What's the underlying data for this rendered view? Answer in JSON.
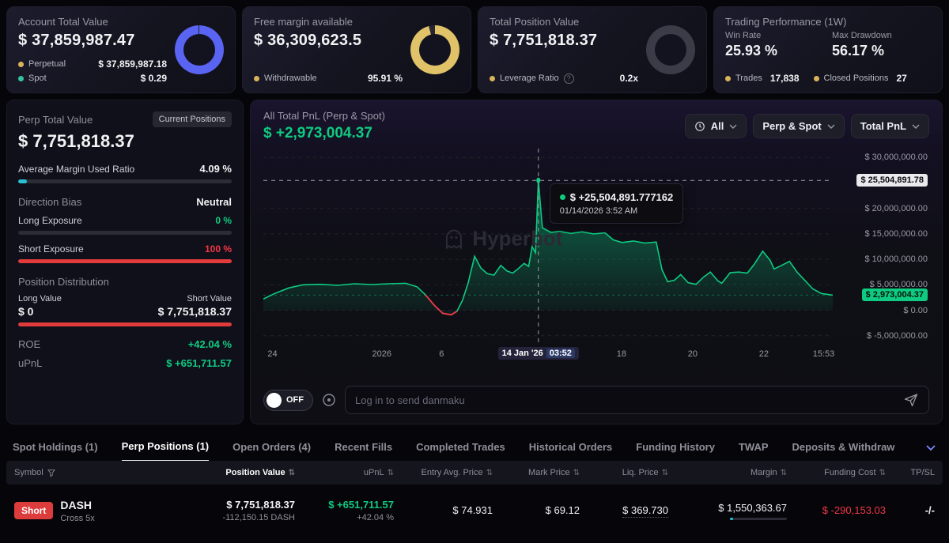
{
  "icons": {
    "sort": "⇅",
    "question": "?"
  },
  "cards": {
    "account": {
      "title": "Account Total Value",
      "value": "$ 37,859,987.47",
      "legend": [
        {
          "label": "Perpetual",
          "value": "$ 37,859,987.18",
          "color": "#d9b45b"
        },
        {
          "label": "Spot",
          "value": "$ 0.29",
          "color": "#35c2a0"
        }
      ],
      "donut": {
        "pct": 99.4,
        "color": "#5964f3",
        "track": "#262633"
      }
    },
    "free_margin": {
      "title": "Free margin available",
      "value": "$ 36,309,623.5",
      "legend_label": "Withdrawable",
      "legend_value": "95.91 %",
      "legend_color": "#d9b45b",
      "donut": {
        "pct": 95.91,
        "color": "#e0c368",
        "track": "#262633"
      }
    },
    "position": {
      "title": "Total Position Value",
      "value": "$ 7,751,818.37",
      "legend_label": "Leverage Ratio",
      "legend_value": "0.2x",
      "legend_color": "#d9b45b",
      "donut": {
        "pct": 100,
        "color": "#3c3c49",
        "track": "#3c3c49"
      }
    },
    "performance": {
      "title": "Trading Performance (1W)",
      "win_rate_label": "Win Rate",
      "win_rate": "25.93 %",
      "max_drawdown_label": "Max Drawdown",
      "max_drawdown": "56.17 %",
      "trades_label": "Trades",
      "trades": "17,838",
      "closed_label": "Closed Positions",
      "closed": "27",
      "dot_color": "#d9b45b"
    }
  },
  "perp_panel": {
    "title": "Perp Total Value",
    "button_label": "Current Positions",
    "value": "$ 7,751,818.37",
    "margin_ratio_label": "Average Margin Used Ratio",
    "margin_ratio_value": "4.09 %",
    "margin_bar": {
      "pct": 4.09,
      "color": "#27c2d4"
    },
    "direction_bias_label": "Direction Bias",
    "direction_bias_value": "Neutral",
    "long_exposure_label": "Long Exposure",
    "long_exposure_value": "0 %",
    "long_bar": {
      "pct": 0,
      "color": "#0ecb81"
    },
    "short_exposure_label": "Short Exposure",
    "short_exposure_value": "100 %",
    "short_bar": {
      "pct": 100,
      "color": "#e23b3b"
    },
    "distribution_label": "Position Distribution",
    "long_value_label": "Long Value",
    "short_value_label": "Short Value",
    "long_value": "$ 0",
    "short_value": "$ 7,751,818.37",
    "dist_bar": {
      "pct": 100,
      "color": "#e23b3b"
    },
    "roe_label": "ROE",
    "roe_value": "+42.04 %",
    "upnl_label": "uPnL",
    "upnl_value": "$ +651,711.57"
  },
  "chart_panel": {
    "title": "All Total PnL (Perp & Spot)",
    "total": "$ +2,973,004.37",
    "filter_time": "All",
    "filter_scope": "Perp & Spot",
    "filter_metric": "Total PnL",
    "watermark": "Hyperbot",
    "danmaku_toggle": "OFF",
    "danmaku_placeholder": "Log in to send danmaku"
  },
  "chart_data": {
    "type": "area",
    "title": "All Total PnL (Perp & Spot)",
    "ylim": [
      -5000000,
      30000000
    ],
    "grid": true,
    "series_color": "#0ecb81",
    "loss_color": "#f23645",
    "current_value": 2973004.37,
    "y_ticks": [
      {
        "label": "$ 30,000,000.00",
        "value": 30000000,
        "type": "normal"
      },
      {
        "label": "$ 25,504,891.78",
        "value": 25504891.78,
        "type": "crosshair"
      },
      {
        "label": "$ 20,000,000.00",
        "value": 20000000,
        "type": "normal"
      },
      {
        "label": "$ 15,000,000.00",
        "value": 15000000,
        "type": "normal"
      },
      {
        "label": "$ 10,000,000.00",
        "value": 10000000,
        "type": "normal"
      },
      {
        "label": "$ 5,000,000.00",
        "value": 5000000,
        "type": "normal"
      },
      {
        "label": "$ 2,973,004.37",
        "value": 2973004.37,
        "type": "current"
      },
      {
        "label": "$ 0.00",
        "value": 0,
        "type": "normal"
      },
      {
        "label": "$ -5,000,000.00",
        "value": -5000000,
        "type": "normal"
      }
    ],
    "x_ticks": [
      {
        "label": "24",
        "x": 0.016
      },
      {
        "label": "2026",
        "x": 0.208
      },
      {
        "label": "6",
        "x": 0.313
      },
      {
        "label": "18",
        "x": 0.629
      },
      {
        "label": "20",
        "x": 0.754
      },
      {
        "label": "22",
        "x": 0.879
      },
      {
        "label": "15:53",
        "x": 0.984
      }
    ],
    "crosshair": {
      "x": 0.483,
      "value": 25504891.78,
      "date_label": "14 Jan '26",
      "time_label": "03:52",
      "tooltip_value": "$ +25,504,891.777162",
      "tooltip_time": "01/14/2026 3:52 AM"
    },
    "red_x_range": [
      0.285,
      0.345
    ],
    "series": [
      [
        0.0,
        2200000
      ],
      [
        0.02,
        3300000
      ],
      [
        0.045,
        4400000
      ],
      [
        0.07,
        5000000
      ],
      [
        0.1,
        5100000
      ],
      [
        0.13,
        4900000
      ],
      [
        0.16,
        5200000
      ],
      [
        0.19,
        5050000
      ],
      [
        0.22,
        5200000
      ],
      [
        0.25,
        5300000
      ],
      [
        0.27,
        4600000
      ],
      [
        0.285,
        3000000
      ],
      [
        0.3,
        1000000
      ],
      [
        0.315,
        -600000
      ],
      [
        0.33,
        -900000
      ],
      [
        0.34,
        -200000
      ],
      [
        0.35,
        2000000
      ],
      [
        0.36,
        5500000
      ],
      [
        0.371,
        10600000
      ],
      [
        0.382,
        8300000
      ],
      [
        0.393,
        7200000
      ],
      [
        0.405,
        6900000
      ],
      [
        0.417,
        8800000
      ],
      [
        0.428,
        7700000
      ],
      [
        0.438,
        7300000
      ],
      [
        0.448,
        8200000
      ],
      [
        0.458,
        9200000
      ],
      [
        0.466,
        8600000
      ],
      [
        0.472,
        12500000
      ],
      [
        0.478,
        11300000
      ],
      [
        0.483,
        25504891.78
      ],
      [
        0.49,
        16200000
      ],
      [
        0.505,
        15300000
      ],
      [
        0.52,
        15500000
      ],
      [
        0.54,
        15100000
      ],
      [
        0.56,
        15400000
      ],
      [
        0.58,
        15000000
      ],
      [
        0.6,
        15200000
      ],
      [
        0.615,
        13800000
      ],
      [
        0.63,
        13300000
      ],
      [
        0.65,
        13600000
      ],
      [
        0.67,
        13200000
      ],
      [
        0.69,
        13400000
      ],
      [
        0.7,
        8000000
      ],
      [
        0.71,
        5600000
      ],
      [
        0.722,
        5900000
      ],
      [
        0.733,
        7000000
      ],
      [
        0.746,
        5400000
      ],
      [
        0.76,
        5100000
      ],
      [
        0.772,
        6400000
      ],
      [
        0.785,
        7500000
      ],
      [
        0.798,
        5800000
      ],
      [
        0.805,
        5300000
      ],
      [
        0.82,
        7400000
      ],
      [
        0.835,
        7500000
      ],
      [
        0.85,
        7300000
      ],
      [
        0.862,
        9000000
      ],
      [
        0.877,
        11600000
      ],
      [
        0.89,
        9800000
      ],
      [
        0.897,
        8100000
      ],
      [
        0.91,
        8800000
      ],
      [
        0.924,
        9600000
      ],
      [
        0.938,
        7400000
      ],
      [
        0.95,
        6000000
      ],
      [
        0.965,
        4200000
      ],
      [
        0.98,
        3300000
      ],
      [
        1.0,
        2973004.37
      ]
    ]
  },
  "tabs": {
    "active_index": 1,
    "items": [
      {
        "label": "Spot Holdings (1)"
      },
      {
        "label": "Perp Positions (1)"
      },
      {
        "label": "Open Orders (4)"
      },
      {
        "label": "Recent Fills"
      },
      {
        "label": "Completed Trades"
      },
      {
        "label": "Historical Orders"
      },
      {
        "label": "Funding History"
      },
      {
        "label": "TWAP"
      },
      {
        "label": "Deposits & Withdraw"
      }
    ]
  },
  "positions_table": {
    "headers": [
      "Symbol",
      "Position Value",
      "uPnL",
      "Entry Avg. Price",
      "Mark Price",
      "Liq. Price",
      "Margin",
      "Funding Cost",
      "TP/SL"
    ],
    "row": {
      "side": "Short",
      "symbol": "DASH",
      "leverage": "Cross 5x",
      "position_value": "$ 7,751,818.37",
      "position_size": "-112,150.15 DASH",
      "upnl": "$ +651,711.57",
      "upnl_pct": "+42.04 %",
      "entry_price": "$ 74.931",
      "mark_price": "$ 69.12",
      "liq_price": "$ 369.730",
      "margin": "$ 1,550,363.67",
      "margin_bar": {
        "pct": 6,
        "color": "#27c2d4"
      },
      "funding_cost": "$ -290,153.03",
      "tpsl": "-/-"
    }
  }
}
